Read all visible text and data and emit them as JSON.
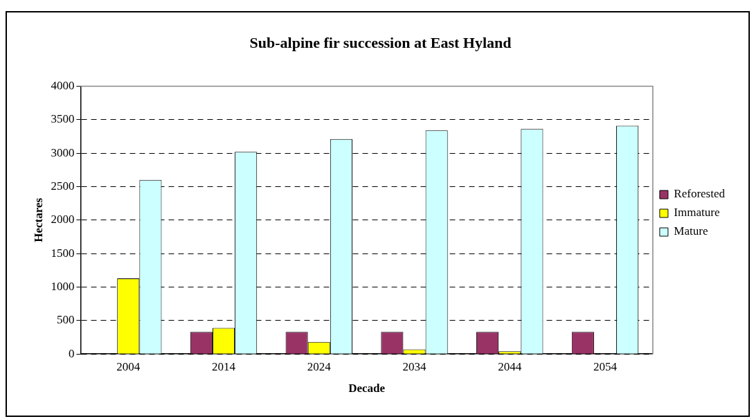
{
  "chart_data": {
    "type": "bar",
    "title": "Sub-alpine fir succession at East Hyland",
    "xlabel": "Decade",
    "ylabel": "Hectares",
    "categories": [
      "2004",
      "2014",
      "2024",
      "2034",
      "2044",
      "2054"
    ],
    "series": [
      {
        "name": "Reforested",
        "color": "#993366",
        "values": [
          0,
          330,
          330,
          330,
          330,
          330
        ]
      },
      {
        "name": "Immature",
        "color": "#ffff00",
        "values": [
          1130,
          390,
          180,
          70,
          40,
          0
        ]
      },
      {
        "name": "Mature",
        "color": "#ccffff",
        "values": [
          2600,
          3020,
          3210,
          3340,
          3360,
          3410
        ]
      }
    ],
    "ylim": [
      0,
      4000
    ],
    "yticks": [
      0,
      500,
      1000,
      1500,
      2000,
      2500,
      3000,
      3500,
      4000
    ],
    "grid": "y",
    "legend": "right"
  }
}
